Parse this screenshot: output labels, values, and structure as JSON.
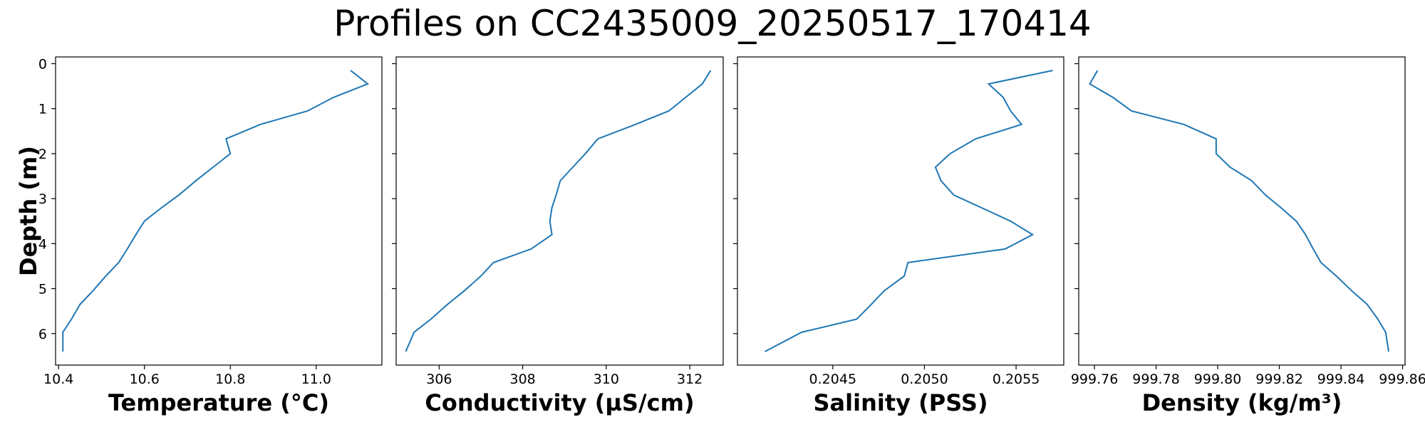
{
  "title": "Profiles on CC2435009_20250517_170414",
  "colors": {
    "line": "#1f77b4",
    "axes": "#000000"
  },
  "chart_data": [
    {
      "type": "line",
      "orientation": "vertical-profile",
      "xlabel": "Temperature (°C)",
      "ylabel": "Depth (m)",
      "xlim": [
        10.393,
        11.153
      ],
      "ylim": [
        6.7,
        -0.15
      ],
      "y_inverted": true,
      "xticks": [
        10.4,
        10.6,
        10.8,
        11.0
      ],
      "xtick_labels": [
        "10.4",
        "10.6",
        "10.8",
        "11.0"
      ],
      "yticks": [
        0,
        1,
        2,
        3,
        4,
        5,
        6
      ],
      "ytick_labels": [
        "0",
        "1",
        "2",
        "3",
        "4",
        "5",
        "6"
      ],
      "x": [
        11.08,
        11.12,
        11.04,
        10.98,
        10.87,
        10.79,
        10.8,
        10.76,
        10.72,
        10.68,
        10.64,
        10.6,
        10.58,
        10.56,
        10.54,
        10.51,
        10.48,
        10.45,
        10.43,
        10.41,
        10.41
      ],
      "y": [
        0.15,
        0.45,
        0.75,
        1.05,
        1.35,
        1.67,
        2.0,
        2.3,
        2.6,
        2.92,
        3.2,
        3.5,
        3.8,
        4.12,
        4.42,
        4.72,
        5.05,
        5.35,
        5.68,
        5.97,
        6.4
      ]
    },
    {
      "type": "line",
      "orientation": "vertical-profile",
      "xlabel": "Conductivity (µS/cm)",
      "xlim": [
        304.97,
        312.8
      ],
      "ylim": [
        6.7,
        -0.15
      ],
      "y_inverted": true,
      "xticks": [
        306,
        308,
        310,
        312
      ],
      "xtick_labels": [
        "306",
        "308",
        "310",
        "312"
      ],
      "yticks": [
        0,
        1,
        2,
        3,
        4,
        5,
        6
      ],
      "x": [
        312.5,
        312.3,
        311.9,
        311.5,
        310.7,
        309.8,
        309.5,
        309.2,
        308.9,
        308.8,
        308.7,
        308.65,
        308.7,
        308.2,
        307.3,
        307.0,
        306.6,
        306.2,
        305.8,
        305.4,
        305.2
      ],
      "y": [
        0.15,
        0.45,
        0.75,
        1.05,
        1.35,
        1.67,
        2.0,
        2.3,
        2.6,
        2.92,
        3.2,
        3.5,
        3.8,
        4.12,
        4.42,
        4.72,
        5.05,
        5.35,
        5.68,
        5.97,
        6.4
      ]
    },
    {
      "type": "line",
      "orientation": "vertical-profile",
      "xlabel": "Salinity (PSS)",
      "xlim": [
        0.20398,
        0.20576
      ],
      "ylim": [
        6.7,
        -0.15
      ],
      "y_inverted": true,
      "xticks": [
        0.2045,
        0.205,
        0.2055
      ],
      "xtick_labels": [
        "0.2045",
        "0.2050",
        "0.2055"
      ],
      "yticks": [
        0,
        1,
        2,
        3,
        4,
        5,
        6
      ],
      "x": [
        0.2057,
        0.20535,
        0.20543,
        0.20547,
        0.20553,
        0.20528,
        0.20514,
        0.20506,
        0.20509,
        0.20516,
        0.20531,
        0.20547,
        0.20559,
        0.20544,
        0.20491,
        0.20489,
        0.20478,
        0.20471,
        0.20463,
        0.20433,
        0.20413
      ],
      "y": [
        0.15,
        0.45,
        0.75,
        1.05,
        1.35,
        1.67,
        2.0,
        2.3,
        2.6,
        2.92,
        3.2,
        3.5,
        3.8,
        4.12,
        4.42,
        4.72,
        5.05,
        5.35,
        5.68,
        5.97,
        6.4
      ]
    },
    {
      "type": "line",
      "orientation": "vertical-profile",
      "xlabel": "Density (kg/m³)",
      "xlim": [
        999.7549,
        999.8608
      ],
      "ylim": [
        6.7,
        -0.15
      ],
      "y_inverted": true,
      "xticks": [
        999.76,
        999.78,
        999.8,
        999.82,
        999.84,
        999.86
      ],
      "xtick_labels": [
        "999.76",
        "999.78",
        "999.80",
        "999.82",
        "999.84",
        "999.86"
      ],
      "yticks": [
        0,
        1,
        2,
        3,
        4,
        5,
        6
      ],
      "x": [
        999.761,
        999.7585,
        999.766,
        999.772,
        999.789,
        999.7995,
        999.7995,
        999.804,
        999.811,
        999.8155,
        999.8205,
        999.8255,
        999.8285,
        999.831,
        999.8335,
        999.8385,
        999.8435,
        999.8485,
        999.852,
        999.8545,
        999.8555
      ],
      "y": [
        0.15,
        0.45,
        0.75,
        1.05,
        1.35,
        1.67,
        2.0,
        2.3,
        2.6,
        2.92,
        3.2,
        3.5,
        3.8,
        4.12,
        4.42,
        4.72,
        5.05,
        5.35,
        5.68,
        5.97,
        6.4
      ]
    }
  ]
}
